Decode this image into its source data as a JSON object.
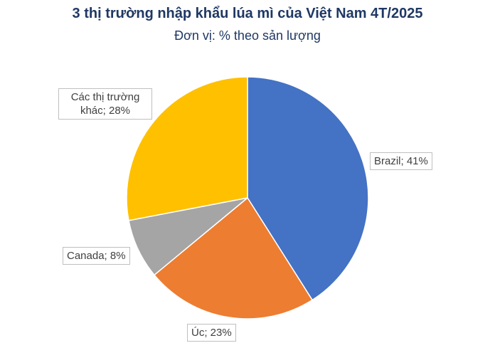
{
  "chart_data": {
    "type": "pie",
    "title": "3 thị trường nhập khẩu lúa mì của Việt Nam 4T/2025",
    "subtitle": "Đơn vị: % theo sản lượng",
    "values": [
      41,
      23,
      8,
      28
    ],
    "value_labels": [
      "Brazil; 41%",
      "Úc; 23%",
      "Canada; 8%",
      "Các thị trường khác; 28%"
    ],
    "colors": [
      "#4472c4",
      "#ed7d31",
      "#a5a5a5",
      "#ffc000"
    ]
  }
}
